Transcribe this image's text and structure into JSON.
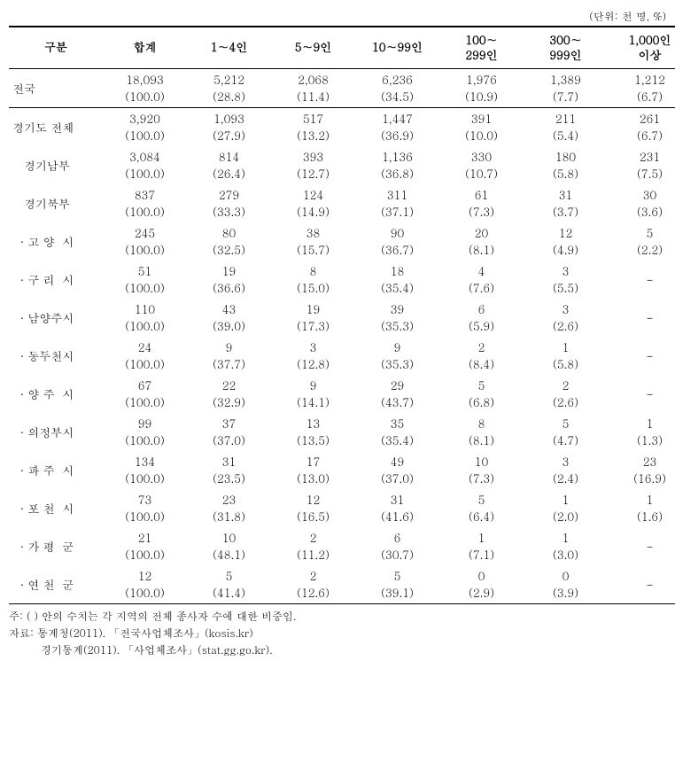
{
  "unit_label": "(단위: 천 명, %)",
  "headers": {
    "col0": "구분",
    "col1": "합계",
    "col2": "1∼4인",
    "col3": "5∼9인",
    "col4": "10∼99인",
    "col5": "100∼\n299인",
    "col6": "300∼\n999인",
    "col7": "1,000인\n이상"
  },
  "rows": [
    {
      "label": "전국",
      "sep": true,
      "v1": "18,093\n(100.0)",
      "v2": "5,212\n(28.8)",
      "v3": "2,068\n(11.4)",
      "v4": "6,236\n(34.5)",
      "v5": "1,976\n(10.9)",
      "v6": "1,389\n(7.7)",
      "v7": "1,212\n(6.7)"
    },
    {
      "label": "경기도 전체",
      "v1": "3,920\n(100.0)",
      "v2": "1,093\n(27.9)",
      "v3": "517\n(13.2)",
      "v4": "1,447\n(36.9)",
      "v5": "391\n(10.0)",
      "v6": "211\n(5.4)",
      "v7": "261\n(6.7)"
    },
    {
      "label": "   경기남부",
      "v1": "3,084\n(100.0)",
      "v2": "814\n(26.4)",
      "v3": "393\n(12.7)",
      "v4": "1,136\n(36.8)",
      "v5": "330\n(10.7)",
      "v6": "180\n(5.8)",
      "v7": "231\n(7.5)"
    },
    {
      "label": "   경기북부",
      "v1": "837\n(100.0)",
      "v2": "279\n(33.3)",
      "v3": "124\n(14.9)",
      "v4": "311\n(37.1)",
      "v5": "61\n(7.3)",
      "v6": "31\n(3.7)",
      "v7": "30\n(3.6)"
    },
    {
      "label": "  · 고 양  시",
      "v1": "245\n(100.0)",
      "v2": "80\n(32.5)",
      "v3": "38\n(15.7)",
      "v4": "90\n(36.7)",
      "v5": "20\n(8.1)",
      "v6": "12\n(4.9)",
      "v7": "5\n(2.2)"
    },
    {
      "label": "  · 구 리  시",
      "v1": "51\n(100.0)",
      "v2": "19\n(36.6)",
      "v3": "8\n(15.0)",
      "v4": "18\n(35.4)",
      "v5": "4\n(7.6)",
      "v6": "3\n(5.5)",
      "v7": "-\n "
    },
    {
      "label": "  · 남양주시",
      "v1": "110\n(100.0)",
      "v2": "43\n(39.0)",
      "v3": "19\n(17.3)",
      "v4": "39\n(35.3)",
      "v5": "6\n(5.9)",
      "v6": "3\n(2.6)",
      "v7": "-\n "
    },
    {
      "label": "  · 동두천시",
      "v1": "24\n(100.0)",
      "v2": "9\n(37.7)",
      "v3": "3\n(12.8)",
      "v4": "9\n(35.3)",
      "v5": "2\n(8.4)",
      "v6": "1\n(5.8)",
      "v7": "-\n "
    },
    {
      "label": "  · 양 주  시",
      "v1": "67\n(100.0)",
      "v2": "22\n(32.9)",
      "v3": "9\n(14.1)",
      "v4": "29\n(43.7)",
      "v5": "5\n(6.8)",
      "v6": "2\n(2.6)",
      "v7": "-\n "
    },
    {
      "label": "  · 의정부시",
      "v1": "99\n(100.0)",
      "v2": "37\n(37.0)",
      "v3": "13\n(13.5)",
      "v4": "35\n(35.4)",
      "v5": "8\n(8.1)",
      "v6": "5\n(4.7)",
      "v7": "1\n(1.3)"
    },
    {
      "label": "  · 파 주  시",
      "v1": "134\n(100.0)",
      "v2": "31\n(23.5)",
      "v3": "17\n(13.0)",
      "v4": "49\n(37.0)",
      "v5": "10\n(7.3)",
      "v6": "3\n(2.4)",
      "v7": "23\n(16.9)"
    },
    {
      "label": "  · 포 천  시",
      "v1": "73\n(100.0)",
      "v2": "23\n(31.8)",
      "v3": "12\n(16.5)",
      "v4": "31\n(41.6)",
      "v5": "5\n(6.4)",
      "v6": "1\n(2.0)",
      "v7": "1\n(1.6)"
    },
    {
      "label": "  · 가 평  군",
      "v1": "21\n(100.0)",
      "v2": "10\n(48.1)",
      "v3": "2\n(11.2)",
      "v4": "6\n(30.7)",
      "v5": "1\n(7.1)",
      "v6": "1\n(3.0)",
      "v7": "-\n "
    },
    {
      "label": "  · 연 천  군",
      "v1": "12\n(100.0)",
      "v2": "5\n(41.4)",
      "v3": "2\n(12.6)",
      "v4": "5\n(39.1)",
      "v5": "0\n(2.9)",
      "v6": "0\n(3.9)",
      "v7": "-\n "
    }
  ],
  "notes": {
    "line1": "주: (  ) 안의 수치는 각 지역의 전체 종사자 수에 대한 비중임.",
    "line2": "자료: 통계청(2011). 「전국사업체조사」(kosis.kr)",
    "line3": "경기통계(2011). 「사업체조사」(stat.gg.go.kr)."
  }
}
